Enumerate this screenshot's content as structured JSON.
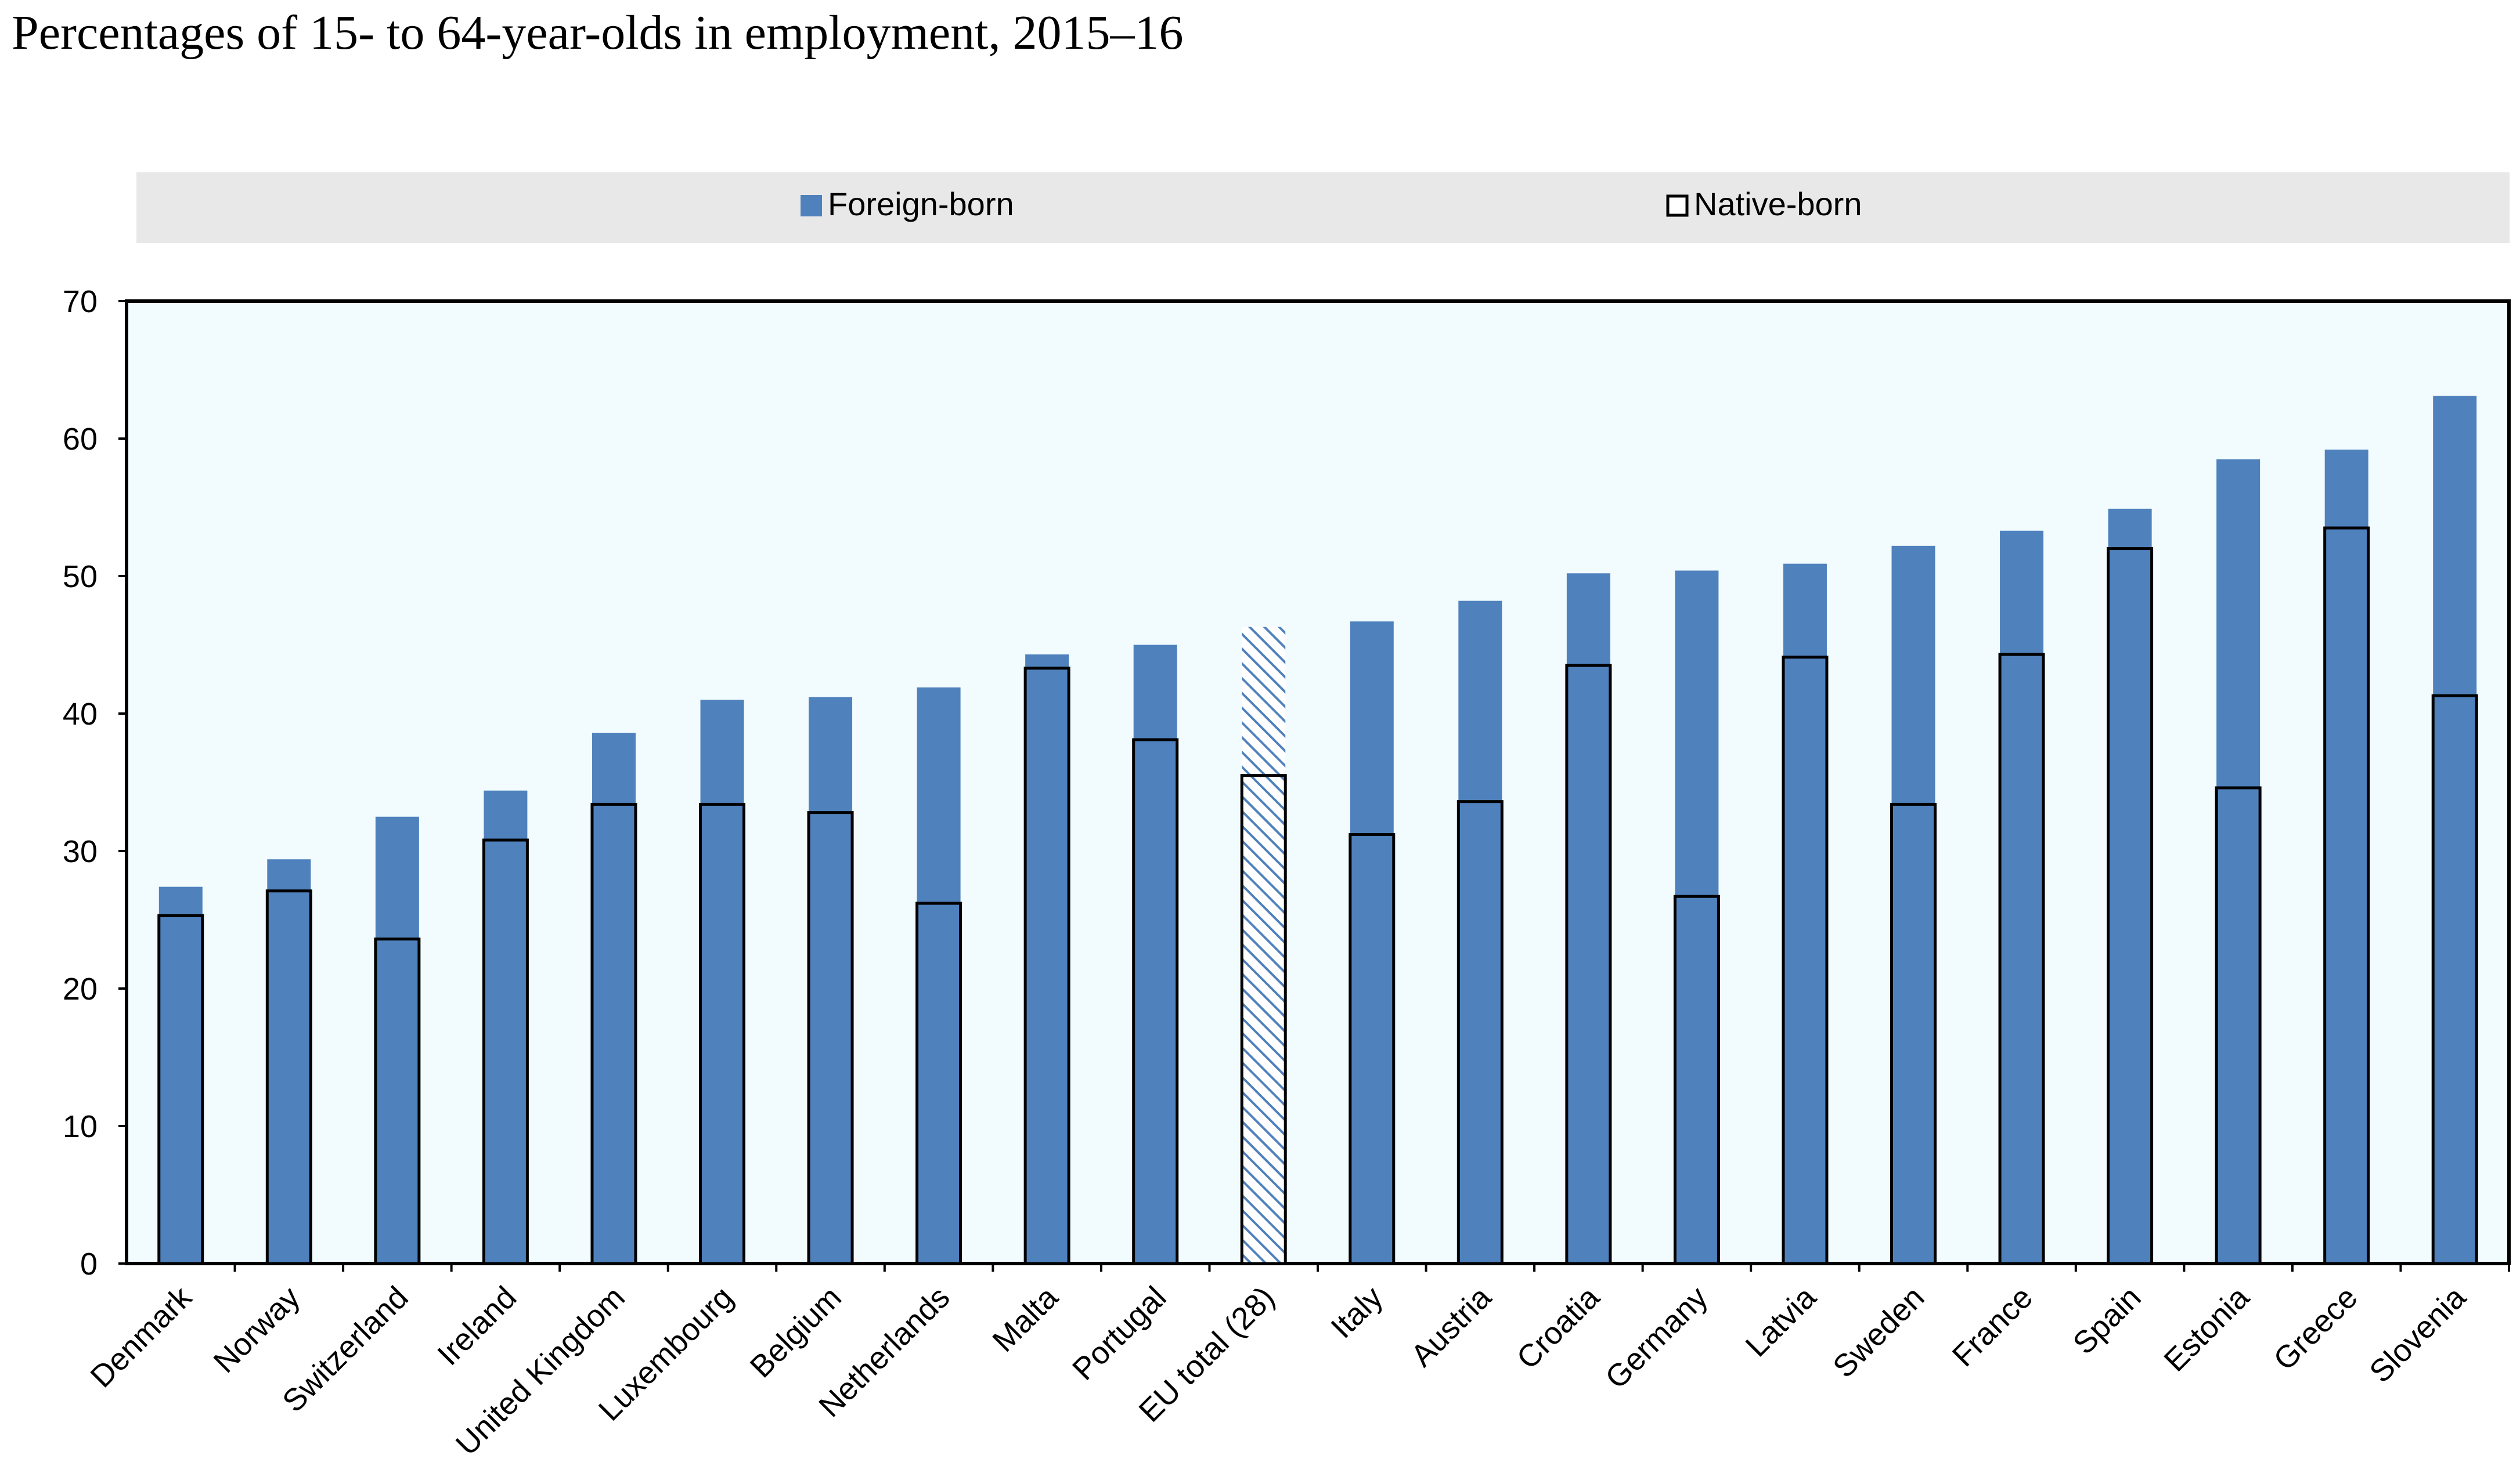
{
  "title": "Percentages of 15- to 64-year-olds in employment, 2015–16",
  "colors": {
    "foreign": "#4f81bd",
    "native_outline": "#000000",
    "plot_bg": "#f2fcff",
    "legend_bg": "#e8e8e8",
    "hatch": "#4f81bd"
  },
  "chart_data": {
    "type": "bar",
    "title": "Percentages of 15- to 64-year-olds in employment, 2015–16",
    "ylim": [
      0,
      70
    ],
    "yticks": [
      0,
      10,
      20,
      30,
      40,
      50,
      60,
      70
    ],
    "grid": false,
    "legend": {
      "position": "top",
      "entries": [
        "Foreign-born",
        "Native-born"
      ]
    },
    "categories": [
      "Denmark",
      "Norway",
      "Switzerland",
      "Ireland",
      "United Kingdom",
      "Luxembourg",
      "Belgium",
      "Netherlands",
      "Malta",
      "Portugal",
      "EU total (28)",
      "Italy",
      "Austria",
      "Croatia",
      "Germany",
      "Latvia",
      "Sweden",
      "France",
      "Spain",
      "Estonia",
      "Greece",
      "Slovenia"
    ],
    "series": [
      {
        "name": "Foreign-born",
        "values": [
          27.4,
          29.4,
          32.5,
          34.4,
          38.6,
          41.0,
          41.2,
          41.9,
          44.3,
          45.0,
          46.3,
          46.7,
          48.2,
          50.2,
          50.4,
          50.9,
          52.2,
          53.3,
          54.9,
          58.5,
          59.2,
          63.1
        ]
      },
      {
        "name": "Native-born",
        "values": [
          25.3,
          27.1,
          23.6,
          30.8,
          33.4,
          33.4,
          32.8,
          26.2,
          43.3,
          38.1,
          35.5,
          31.2,
          33.6,
          43.5,
          26.7,
          44.1,
          33.4,
          44.3,
          52.0,
          34.6,
          53.5,
          41.3
        ]
      }
    ],
    "highlight_category": "EU total (28)"
  }
}
